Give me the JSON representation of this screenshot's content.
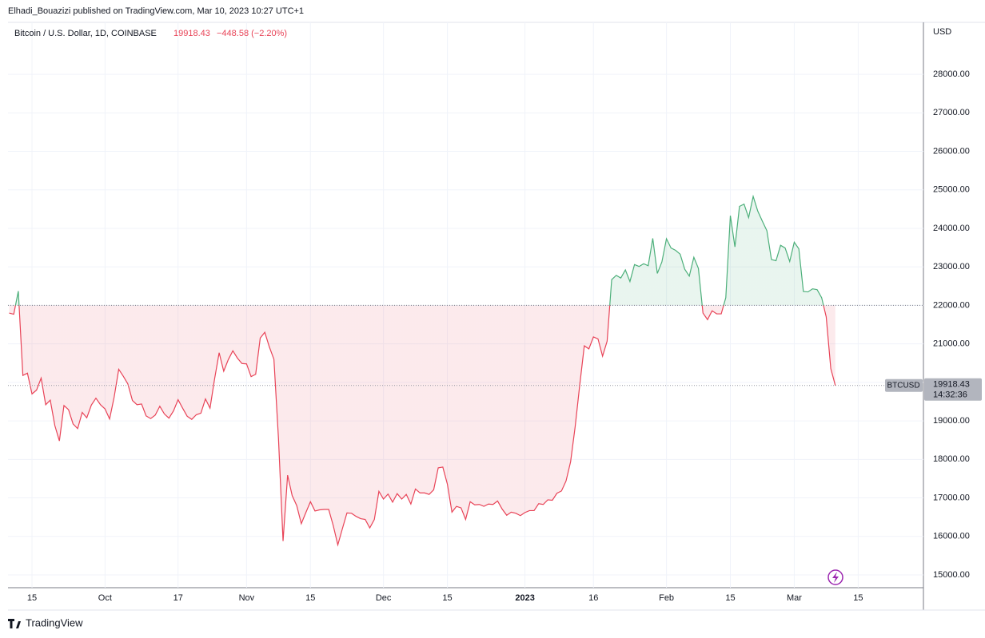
{
  "header": "Elhadi_Bouazizi published on TradingView.com, Mar 10, 2023 10:27 UTC+1",
  "footer": "TradingView",
  "chart_data": {
    "type": "baseline",
    "title": "Bitcoin / U.S. Dollar, 1D, COINBASE",
    "change": "−448.58 (−2.20%)",
    "currency": "USD",
    "symbol": "BTCUSD",
    "countdown": "14:32:36",
    "baseline": 22000,
    "up_color": "#4caf7a",
    "down_color": "#e84357",
    "grid": true,
    "xlim": [
      -0.26,
      200.3
    ],
    "ylim": [
      14668,
      29350
    ],
    "yticks": [
      {
        "value": 15000,
        "label": "15000.00"
      },
      {
        "value": 16000,
        "label": "16000.00"
      },
      {
        "value": 17000,
        "label": "17000.00"
      },
      {
        "value": 18000,
        "label": "18000.00"
      },
      {
        "value": 19000,
        "label": "19000.00"
      },
      {
        "value": 20000,
        "label": "20000.00"
      },
      {
        "value": 21000,
        "label": "21000.00"
      },
      {
        "value": 22000,
        "label": "22000.00"
      },
      {
        "value": 23000,
        "label": "23000.00"
      },
      {
        "value": 24000,
        "label": "24000.00"
      },
      {
        "value": 25000,
        "label": "25000.00"
      },
      {
        "value": 26000,
        "label": "26000.00"
      },
      {
        "value": 27000,
        "label": "27000.00"
      },
      {
        "value": 28000,
        "label": "28000.00"
      }
    ],
    "xticks": [
      {
        "value": 5,
        "label": "15"
      },
      {
        "value": 21,
        "label": "Oct"
      },
      {
        "value": 37,
        "label": "17"
      },
      {
        "value": 52,
        "label": "Nov"
      },
      {
        "value": 66,
        "label": "15"
      },
      {
        "value": 82,
        "label": "Dec"
      },
      {
        "value": 96,
        "label": "15"
      },
      {
        "value": 113,
        "label": "2023"
      },
      {
        "value": 128,
        "label": "16"
      },
      {
        "value": 144,
        "label": "Feb"
      },
      {
        "value": 158,
        "label": "15"
      },
      {
        "value": 172,
        "label": "Mar"
      },
      {
        "value": 186,
        "label": "15"
      }
    ],
    "series": [
      {
        "name": "BTCUSD",
        "values": [
          21800,
          21770,
          22370,
          20180,
          20240,
          19700,
          19800,
          20110,
          19420,
          19540,
          18880,
          18480,
          19400,
          19290,
          18920,
          18800,
          19220,
          19080,
          19410,
          19590,
          19420,
          19310,
          19050,
          19620,
          20340,
          20160,
          19960,
          19530,
          19420,
          19440,
          19130,
          19060,
          19150,
          19380,
          19180,
          19070,
          19260,
          19550,
          19330,
          19120,
          19040,
          19160,
          19200,
          19570,
          19330,
          20090,
          20770,
          20290,
          20590,
          20820,
          20630,
          20490,
          20480,
          20150,
          20210,
          21150,
          21300,
          20920,
          20600,
          18540,
          15880,
          17590,
          17060,
          16800,
          16330,
          16620,
          16900,
          16660,
          16690,
          16700,
          16700,
          16280,
          15780,
          16200,
          16610,
          16600,
          16520,
          16460,
          16440,
          16220,
          16440,
          17170,
          16970,
          17100,
          16890,
          17110,
          16970,
          17090,
          16840,
          17230,
          17130,
          17130,
          17090,
          17210,
          17780,
          17800,
          17360,
          16630,
          16780,
          16740,
          16440,
          16900,
          16820,
          16830,
          16780,
          16840,
          16830,
          16920,
          16710,
          16550,
          16630,
          16600,
          16540,
          16620,
          16670,
          16670,
          16850,
          16830,
          16950,
          16940,
          17120,
          17180,
          17440,
          17940,
          18850,
          19930,
          20950,
          20870,
          21180,
          21130,
          20680,
          21070,
          22670,
          22780,
          22710,
          22920,
          22620,
          23060,
          23010,
          23080,
          23030,
          23740,
          22830,
          23130,
          23730,
          23490,
          23430,
          23330,
          22940,
          22760,
          23250,
          22960,
          21800,
          21630,
          21860,
          21780,
          21780,
          22200,
          24330,
          23520,
          24570,
          24630,
          24280,
          24830,
          24450,
          24190,
          23940,
          23190,
          23160,
          23560,
          23490,
          23140,
          23640,
          23470,
          22360,
          22350,
          22430,
          22410,
          22200,
          21700,
          20360,
          19918.43
        ]
      }
    ]
  }
}
